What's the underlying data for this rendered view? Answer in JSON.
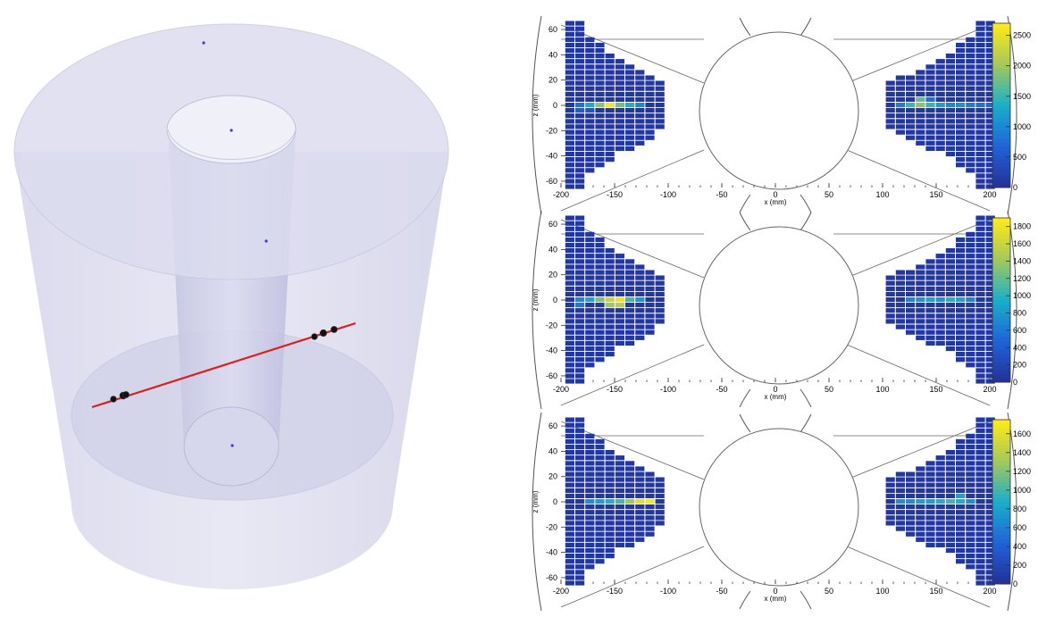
{
  "scene": {
    "track_color": "#e11d1d",
    "detector_color": "#c9c9e6",
    "hit_color": "#111111"
  },
  "chart_data": [
    {
      "type": "heatmap",
      "title": "",
      "xlabel": "x (mm)",
      "ylabel": "z (mm)",
      "xlim": [
        -200,
        200
      ],
      "ylim": [
        -65,
        65
      ],
      "x_ticks": [
        -200,
        -150,
        -100,
        -50,
        0,
        50,
        100,
        150,
        200
      ],
      "y_ticks": [
        -60,
        -40,
        -20,
        0,
        20,
        40,
        60
      ],
      "colorbar_ticks": [
        0,
        500,
        1000,
        1500,
        2000,
        2500
      ],
      "colorbar_max": 2700,
      "left_hot": [
        {
          "col": 1,
          "row": 0,
          "v": 800
        },
        {
          "col": 2,
          "row": 0,
          "v": 1300
        },
        {
          "col": 3,
          "row": 0,
          "v": 1900
        },
        {
          "col": 4,
          "row": 0,
          "v": 2600
        },
        {
          "col": 5,
          "row": 0,
          "v": 1800
        },
        {
          "col": 6,
          "row": 0,
          "v": 1400
        },
        {
          "col": 7,
          "row": 0,
          "v": 1000
        },
        {
          "col": 1,
          "row": -1,
          "v": 600
        },
        {
          "col": 2,
          "row": -1,
          "v": 500
        }
      ],
      "right_hot": [
        {
          "col": 1,
          "row": 0,
          "v": 900
        },
        {
          "col": 2,
          "row": 0,
          "v": 1500
        },
        {
          "col": 3,
          "row": 0,
          "v": 1900
        },
        {
          "col": 4,
          "row": 0,
          "v": 1500
        },
        {
          "col": 5,
          "row": 0,
          "v": 1200
        },
        {
          "col": 6,
          "row": 0,
          "v": 1000
        },
        {
          "col": 7,
          "row": 0,
          "v": 1100
        },
        {
          "col": 8,
          "row": 0,
          "v": 900
        },
        {
          "col": 9,
          "row": 0,
          "v": 800
        },
        {
          "col": 10,
          "row": 0,
          "v": 700
        },
        {
          "col": 3,
          "row": 1,
          "v": 1700
        },
        {
          "col": 4,
          "row": 1,
          "v": 800
        }
      ]
    },
    {
      "type": "heatmap",
      "title": "",
      "xlabel": "x (mm)",
      "ylabel": "z (mm)",
      "xlim": [
        -200,
        200
      ],
      "ylim": [
        -65,
        65
      ],
      "x_ticks": [
        -200,
        -150,
        -100,
        -50,
        0,
        50,
        100,
        150,
        200
      ],
      "y_ticks": [
        -60,
        -40,
        -20,
        0,
        20,
        40,
        60
      ],
      "colorbar_ticks": [
        0,
        200,
        400,
        600,
        800,
        1000,
        1200,
        1400,
        1600,
        1800
      ],
      "colorbar_max": 1900,
      "left_hot": [
        {
          "col": 1,
          "row": 0,
          "v": 700
        },
        {
          "col": 2,
          "row": 0,
          "v": 900
        },
        {
          "col": 3,
          "row": 0,
          "v": 1300
        },
        {
          "col": 4,
          "row": 0,
          "v": 1600
        },
        {
          "col": 5,
          "row": 0,
          "v": 1800
        },
        {
          "col": 6,
          "row": 0,
          "v": 1100
        },
        {
          "col": 7,
          "row": 0,
          "v": 800
        },
        {
          "col": 4,
          "row": -1,
          "v": 1400
        },
        {
          "col": 5,
          "row": -1,
          "v": 1500
        },
        {
          "col": 1,
          "row": -1,
          "v": 600
        }
      ],
      "right_hot": [
        {
          "col": 2,
          "row": 0,
          "v": 700
        },
        {
          "col": 3,
          "row": 0,
          "v": 800
        },
        {
          "col": 4,
          "row": 0,
          "v": 900
        },
        {
          "col": 5,
          "row": 0,
          "v": 800
        },
        {
          "col": 6,
          "row": 0,
          "v": 1000
        },
        {
          "col": 7,
          "row": 0,
          "v": 900
        },
        {
          "col": 8,
          "row": 0,
          "v": 700
        }
      ]
    },
    {
      "type": "heatmap",
      "title": "",
      "xlabel": "x (mm)",
      "ylabel": "z (mm)",
      "xlim": [
        -200,
        200
      ],
      "ylim": [
        -65,
        65
      ],
      "x_ticks": [
        -200,
        -150,
        -100,
        -50,
        0,
        50,
        100,
        150,
        200
      ],
      "y_ticks": [
        -60,
        -40,
        -20,
        0,
        20,
        40,
        60
      ],
      "colorbar_ticks": [
        0,
        200,
        400,
        600,
        800,
        1000,
        1200,
        1400,
        1600
      ],
      "colorbar_max": 1750,
      "left_hot": [
        {
          "col": 2,
          "row": 0,
          "v": 700
        },
        {
          "col": 3,
          "row": 0,
          "v": 800
        },
        {
          "col": 4,
          "row": 0,
          "v": 900
        },
        {
          "col": 5,
          "row": 0,
          "v": 1000
        },
        {
          "col": 6,
          "row": 0,
          "v": 1300
        },
        {
          "col": 7,
          "row": 0,
          "v": 1600
        },
        {
          "col": 8,
          "row": 0,
          "v": 1700
        }
      ],
      "right_hot": [
        {
          "col": 1,
          "row": 0,
          "v": 700
        },
        {
          "col": 2,
          "row": 0,
          "v": 700
        },
        {
          "col": 3,
          "row": 0,
          "v": 800
        },
        {
          "col": 4,
          "row": 0,
          "v": 800
        },
        {
          "col": 5,
          "row": 0,
          "v": 900
        },
        {
          "col": 6,
          "row": 0,
          "v": 1000
        },
        {
          "col": 7,
          "row": 0,
          "v": 900
        },
        {
          "col": 7,
          "row": 1,
          "v": 800
        },
        {
          "col": 8,
          "row": 0,
          "v": 700
        }
      ]
    }
  ]
}
